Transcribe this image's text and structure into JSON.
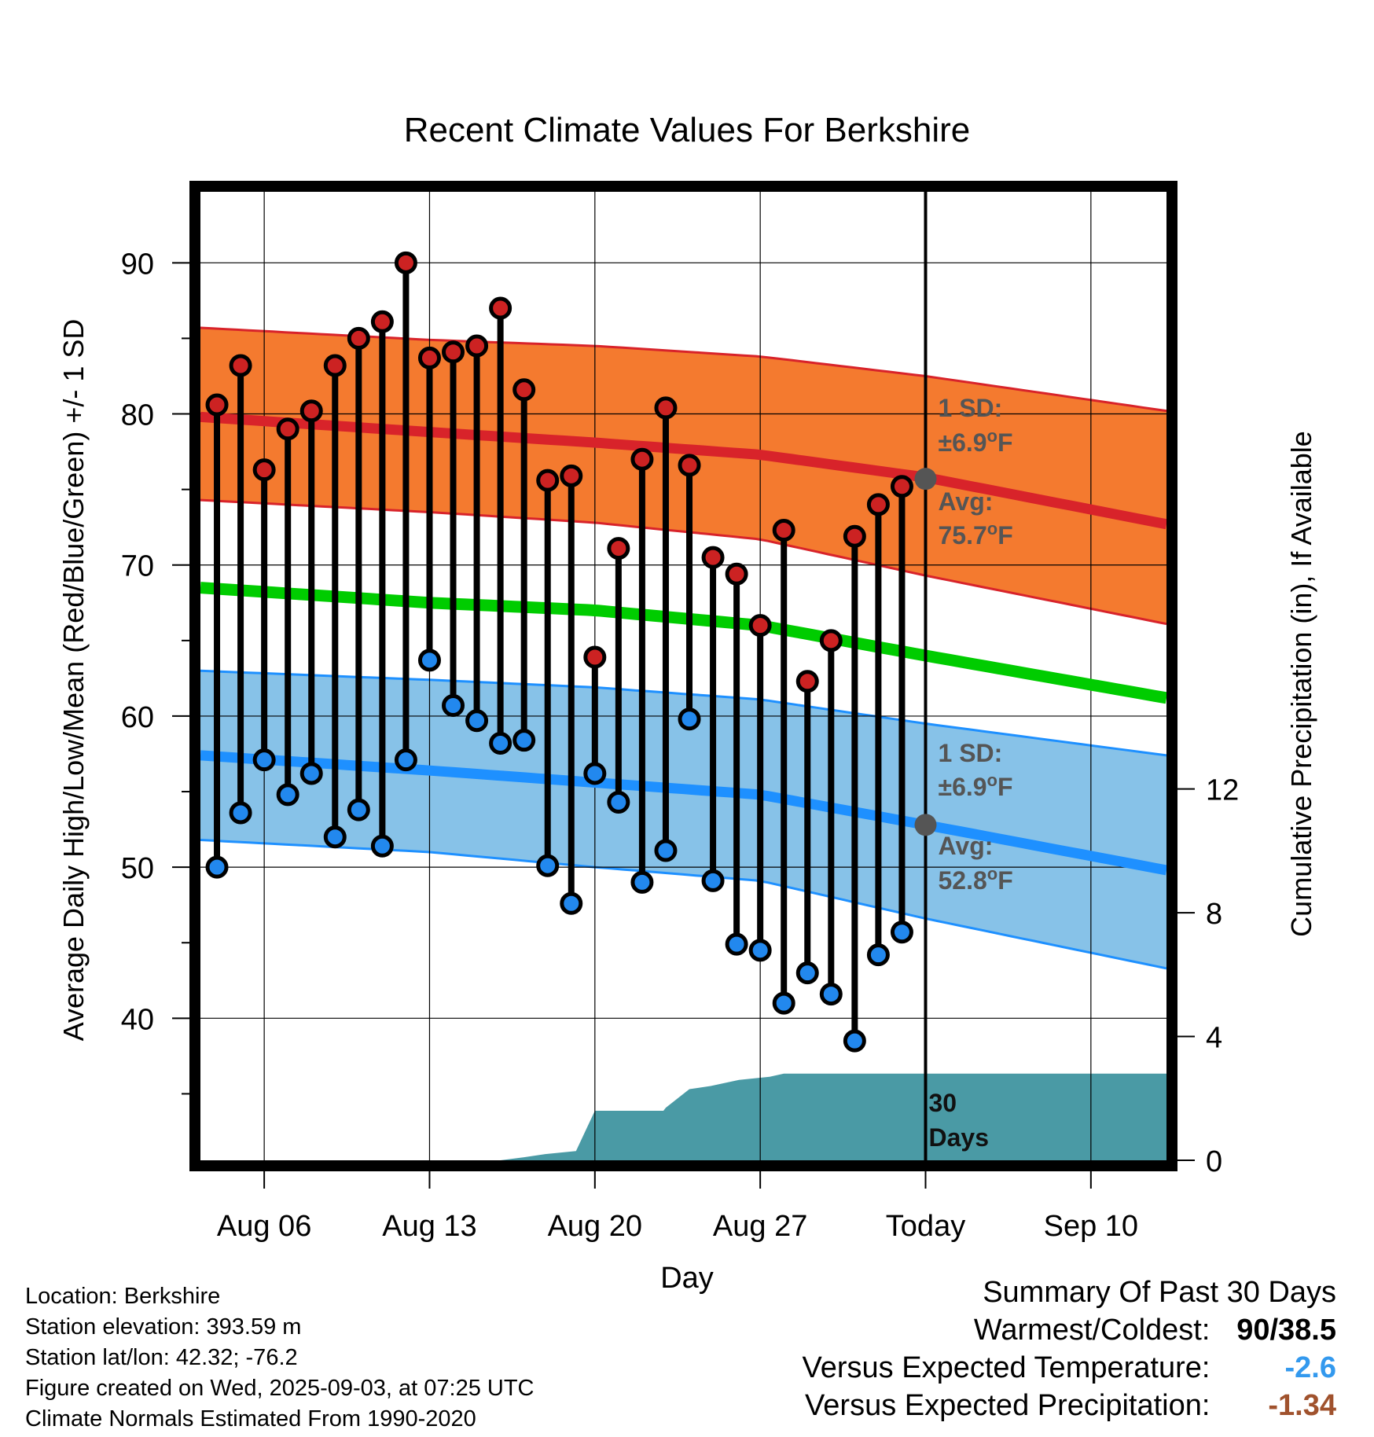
{
  "title": "Recent Climate Values For Berkshire",
  "colors": {
    "high_band": "#f47a2f",
    "high_line": "#d8232a",
    "low_band": "#87c2e8",
    "low_line": "#1e90ff",
    "mean_line": "#00cc00",
    "precip": "#4a9aa5",
    "high_dot": "#cc2222",
    "low_dot": "#2288ee",
    "today_dot": "#555555",
    "warm_cold": "#000000",
    "temp_anomaly": "#3399ee",
    "precip_anomaly": "#a0522d"
  },
  "chart_data": {
    "type": "line",
    "title": "Recent Climate Values For Berkshire",
    "xlabel": "Day",
    "ylabel": "Average Daily High/Low/Mean (Red/Blue/Green) +/- 1 SD",
    "y2label": "Cumulative Precipitation (in), If Available",
    "ylim": [
      30.6,
      94.7
    ],
    "y2lim": [
      0,
      25
    ],
    "xlim": [
      0.3,
      41.2
    ],
    "yticks": [
      40,
      50,
      60,
      70,
      80,
      90
    ],
    "y2ticks": [
      0,
      4,
      8,
      12
    ],
    "xticks": [
      {
        "x": 3,
        "label": "Aug 06"
      },
      {
        "x": 10,
        "label": "Aug 13"
      },
      {
        "x": 17,
        "label": "Aug 20"
      },
      {
        "x": 24,
        "label": "Aug 27"
      },
      {
        "x": 31,
        "label": "Today"
      },
      {
        "x": 38,
        "label": "Sep 10"
      }
    ],
    "today_x": 31,
    "grid": true,
    "normals": {
      "x": [
        0.3,
        10,
        17,
        24,
        31,
        41.2
      ],
      "high_mean": [
        79.8,
        78.8,
        78.1,
        77.3,
        75.8,
        72.7
      ],
      "high_upper": [
        85.7,
        84.9,
        84.5,
        83.8,
        82.5,
        80.2
      ],
      "high_lower": [
        74.3,
        73.5,
        72.8,
        71.7,
        69.3,
        66.1
      ],
      "mean": [
        68.5,
        67.5,
        67.0,
        66.0,
        64.0,
        61.2
      ],
      "low_mean": [
        57.4,
        56.4,
        55.6,
        54.8,
        52.8,
        49.8
      ],
      "low_upper": [
        63.0,
        62.4,
        61.9,
        61.1,
        59.5,
        57.4
      ],
      "low_lower": [
        51.8,
        51.0,
        50.0,
        49.1,
        46.6,
        43.3
      ]
    },
    "series": [
      {
        "name": "High",
        "x": [
          1,
          2,
          3,
          4,
          5,
          6,
          7,
          8,
          9,
          10,
          11,
          12,
          13,
          14,
          15,
          16,
          17,
          18,
          19,
          20,
          21,
          22,
          23,
          24,
          25,
          26,
          27,
          28,
          29,
          30
        ],
        "values": [
          80.6,
          83.2,
          76.3,
          79.0,
          80.2,
          83.2,
          85.0,
          86.1,
          90.0,
          83.7,
          84.1,
          84.5,
          87.0,
          81.6,
          75.6,
          75.9,
          63.9,
          71.1,
          77.0,
          80.4,
          76.6,
          70.5,
          69.4,
          66.0,
          72.3,
          62.3,
          65.0,
          71.9,
          74.0,
          75.2
        ]
      },
      {
        "name": "Low",
        "x": [
          1,
          2,
          3,
          4,
          5,
          6,
          7,
          8,
          9,
          10,
          11,
          12,
          13,
          14,
          15,
          16,
          17,
          18,
          19,
          20,
          21,
          22,
          23,
          24,
          25,
          26,
          27,
          28,
          29,
          30
        ],
        "values": [
          50.0,
          53.6,
          57.1,
          54.8,
          56.2,
          52.0,
          53.8,
          51.4,
          57.1,
          63.7,
          60.7,
          59.7,
          58.2,
          58.4,
          50.1,
          47.6,
          56.2,
          54.3,
          49.0,
          51.1,
          59.8,
          49.1,
          44.9,
          44.5,
          41.0,
          43.0,
          41.6,
          38.5,
          44.2,
          45.7
        ]
      }
    ],
    "today_markers": {
      "high_avg": 75.7,
      "low_avg": 52.8
    },
    "annotations": {
      "high_sd_label": "1 SD:",
      "high_sd_value": "±6.9",
      "high_avg_label": "Avg:",
      "high_avg_value": "75.7",
      "low_sd_label": "1 SD:",
      "low_sd_value": "±6.9",
      "low_avg_label": "Avg:",
      "low_avg_value": "52.8",
      "degree": "o",
      "unit": "F",
      "days_number": "30",
      "days_word": "Days"
    },
    "precipitation": {
      "x": [
        0.3,
        13.0,
        14.0,
        14.9,
        16.2,
        17.0,
        19.9,
        20.0,
        21.0,
        21.9,
        23.1,
        24.4,
        25.0,
        26.5,
        41.2
      ],
      "values": [
        0,
        0,
        0.1,
        0.2,
        0.3,
        1.6,
        1.6,
        1.7,
        2.3,
        2.4,
        2.6,
        2.7,
        2.8,
        2.8,
        2.8
      ]
    }
  },
  "info": {
    "location": "Location: Berkshire",
    "elevation": "Station elevation: 393.59 m",
    "latlon": "Station lat/lon: 42.32; -76.2",
    "created": "Figure created on Wed, 2025-09-03, at 07:25 UTC",
    "normals": "Climate Normals Estimated From 1990-2020"
  },
  "summary": {
    "header": "Summary Of Past 30 Days",
    "warm_cold_label": "Warmest/Coldest:",
    "warm_cold_value": "90/38.5",
    "temp_label": "Versus Expected Temperature:",
    "temp_value": "-2.6",
    "precip_label": "Versus Expected Precipitation:",
    "precip_value": "-1.34"
  }
}
